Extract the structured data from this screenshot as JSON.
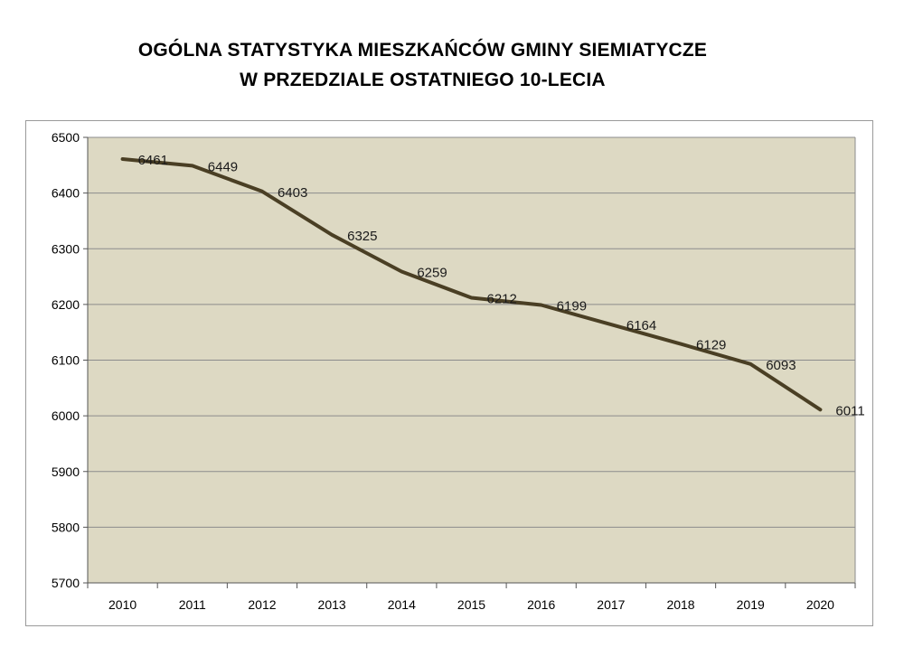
{
  "chart_data": {
    "type": "line",
    "title": "OGÓLNA STATYSTYKA MIESZKAŃCÓW GMINY SIEMIATYCZE",
    "subtitle": "W PRZEDZIALE OSTATNIEGO 10-LECIA",
    "xlabel": "",
    "ylabel": "",
    "categories": [
      "2010",
      "2011",
      "2012",
      "2013",
      "2014",
      "2015",
      "2016",
      "2017",
      "2018",
      "2019",
      "2020"
    ],
    "values": [
      6461,
      6449,
      6403,
      6325,
      6259,
      6212,
      6199,
      6164,
      6129,
      6093,
      6011
    ],
    "data_labels": [
      "6461",
      "6449",
      "6403",
      "6325",
      "6259",
      "6212",
      "6199",
      "6164",
      "6129",
      "6093",
      "6011"
    ],
    "ylim": [
      5700,
      6500
    ],
    "yticks": [
      5700,
      5800,
      5900,
      6000,
      6100,
      6200,
      6300,
      6400,
      6500
    ],
    "grid": true,
    "legend": "none",
    "colors": {
      "line": "#4a3f24",
      "plot_bg": "#ddd9c3",
      "grid": "#8c8c8c"
    }
  }
}
